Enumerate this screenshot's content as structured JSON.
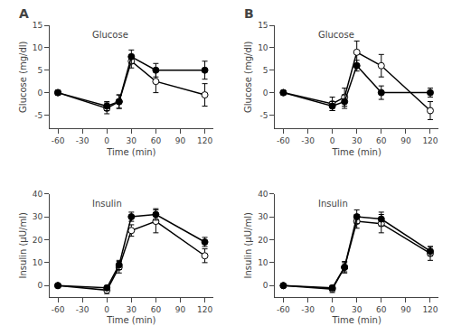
{
  "chart_data": [
    {
      "type": "line",
      "panel_label": "A",
      "annotation": "Glucose",
      "xlabel": "Time (min)",
      "ylabel": "Glucose (mg/dl)",
      "x": [
        -60,
        0,
        15,
        30,
        60,
        120
      ],
      "series": [
        {
          "color": "black",
          "marker": "open",
          "values": [
            0,
            -3.5,
            -2,
            7,
            2.5,
            -0.5
          ],
          "errors": [
            0.5,
            1.2,
            1.5,
            1.5,
            2.5,
            2.5
          ]
        },
        {
          "color": "black",
          "marker": "filled",
          "values": [
            0,
            -3,
            -2,
            8,
            5,
            5
          ],
          "errors": [
            0.5,
            1.0,
            1.5,
            1.5,
            1.5,
            2.0
          ]
        }
      ],
      "xlim": [
        -70,
        130
      ],
      "xticks": [
        -60,
        -30,
        0,
        30,
        60,
        90,
        120
      ],
      "ylim": [
        -8,
        15
      ],
      "yticks": [
        -5,
        0,
        5,
        10,
        15
      ],
      "grid": false
    },
    {
      "type": "line",
      "panel_label": "B",
      "annotation": "Glucose",
      "xlabel": "Time (min)",
      "ylabel": "Glucose (mg/dl)",
      "x": [
        -60,
        0,
        15,
        30,
        60,
        120
      ],
      "series": [
        {
          "color": "black",
          "marker": "open",
          "values": [
            0,
            -2.5,
            -1,
            9,
            6,
            -4
          ],
          "errors": [
            0.5,
            1.5,
            2.0,
            2.5,
            2.5,
            2.0
          ]
        },
        {
          "color": "black",
          "marker": "filled",
          "values": [
            0,
            -3,
            -2,
            6,
            0,
            0
          ],
          "errors": [
            0.3,
            1.0,
            1.5,
            1.2,
            1.5,
            1.0
          ]
        }
      ],
      "xlim": [
        -70,
        130
      ],
      "xticks": [
        -60,
        -30,
        0,
        30,
        60,
        90,
        120
      ],
      "ylim": [
        -8,
        15
      ],
      "yticks": [
        -5,
        0,
        5,
        10,
        15
      ],
      "grid": false
    },
    {
      "type": "line",
      "annotation": "Insulin",
      "xlabel": "Time (min)",
      "ylabel": "Insulin (μU/ml)",
      "x": [
        -60,
        0,
        15,
        30,
        60,
        120
      ],
      "series": [
        {
          "color": "black",
          "marker": "open",
          "values": [
            0,
            -2,
            8,
            24,
            28,
            13
          ],
          "errors": [
            0.5,
            1.5,
            2.5,
            2.5,
            5.0,
            3.0
          ]
        },
        {
          "color": "black",
          "marker": "filled",
          "values": [
            0,
            -1,
            9,
            30,
            31,
            19
          ],
          "errors": [
            0.5,
            1.0,
            2.0,
            2.0,
            2.5,
            2.0
          ]
        }
      ],
      "xlim": [
        -70,
        130
      ],
      "xticks": [
        -60,
        -30,
        0,
        30,
        60,
        90,
        120
      ],
      "ylim": [
        -5,
        40
      ],
      "yticks": [
        0,
        10,
        20,
        30,
        40
      ],
      "grid": false
    },
    {
      "type": "line",
      "annotation": "Insulin",
      "xlabel": "Time (min)",
      "ylabel": "Insulin (μU/ml)",
      "x": [
        -60,
        0,
        15,
        30,
        60,
        120
      ],
      "series": [
        {
          "color": "black",
          "marker": "open",
          "values": [
            0,
            -1.5,
            8,
            28,
            27,
            14
          ],
          "errors": [
            0.5,
            1.5,
            2.5,
            3.0,
            4.0,
            3.0
          ]
        },
        {
          "color": "black",
          "marker": "filled",
          "values": [
            0,
            -1,
            8,
            30,
            29,
            15
          ],
          "errors": [
            0.5,
            1.0,
            2.0,
            3.0,
            3.0,
            2.0
          ]
        }
      ],
      "xlim": [
        -70,
        130
      ],
      "xticks": [
        -60,
        -30,
        0,
        30,
        60,
        90,
        120
      ],
      "ylim": [
        -5,
        40
      ],
      "yticks": [
        0,
        10,
        20,
        30,
        40
      ],
      "grid": false
    }
  ]
}
